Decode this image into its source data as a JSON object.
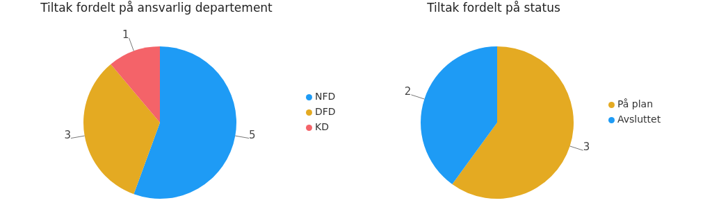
{
  "chart_data": [
    {
      "type": "pie",
      "title": "Tiltak fordelt på ansvarlig departement",
      "categories": [
        "NFD",
        "DFD",
        "KD"
      ],
      "values": [
        5,
        3,
        1
      ],
      "colors": [
        "#1e9bf5",
        "#e4aa22",
        "#f46369"
      ],
      "data_labels": true,
      "legend": "right"
    },
    {
      "type": "pie",
      "title": "Tiltak fordelt på status",
      "categories": [
        "På plan",
        "Avsluttet"
      ],
      "values": [
        3,
        2
      ],
      "colors": [
        "#e4aa22",
        "#1e9bf5"
      ],
      "data_labels": true,
      "legend": "right"
    }
  ]
}
